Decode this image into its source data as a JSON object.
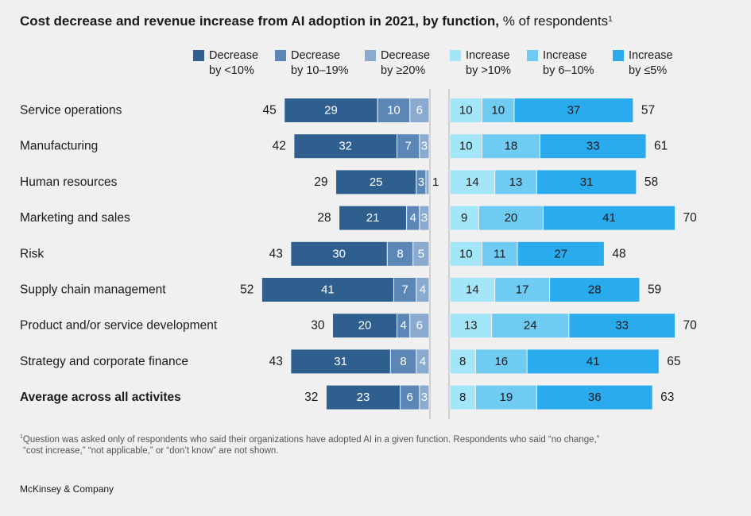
{
  "chart_data": {
    "type": "bar",
    "layout": "diverging-stacked-horizontal",
    "title": "Cost decrease and revenue increase from AI adoption in 2021, by function,",
    "title_unit": "% of respondents",
    "title_footnote_mark": "1",
    "legend": [
      {
        "line1": "Decrease",
        "line2": "by <10%",
        "color": "#2f5f8f"
      },
      {
        "line1": "Decrease",
        "line2": "by 10–19%",
        "color": "#5b86b5"
      },
      {
        "line1": "Decrease",
        "line2": "by ≥20%",
        "color": "#8aabcf"
      },
      {
        "line1": "Increase",
        "line2": "by >10%",
        "color": "#a3e6fa"
      },
      {
        "line1": "Increase",
        "line2": "by 6–10%",
        "color": "#6fcbf2"
      },
      {
        "line1": "Increase",
        "line2": "by ≤5%",
        "color": "#2aabee"
      }
    ],
    "categories": [
      "Service operations",
      "Manufacturing",
      "Human resources",
      "Marketing and sales",
      "Risk",
      "Supply chain management",
      "Product and/or service development",
      "Strategy and corporate finance",
      "Average across all activites"
    ],
    "bold_category_index": 8,
    "decrease": {
      "series": [
        {
          "name": "Decrease by <10%",
          "values": [
            29,
            32,
            25,
            21,
            30,
            41,
            20,
            31,
            23
          ]
        },
        {
          "name": "Decrease by 10–19%",
          "values": [
            10,
            7,
            3,
            4,
            8,
            7,
            4,
            8,
            6
          ]
        },
        {
          "name": "Decrease by ≥20%",
          "values": [
            6,
            3,
            1,
            3,
            5,
            4,
            6,
            4,
            3
          ]
        }
      ],
      "totals": [
        45,
        42,
        29,
        28,
        43,
        52,
        30,
        43,
        32
      ]
    },
    "increase": {
      "series": [
        {
          "name": "Increase by >10%",
          "values": [
            10,
            10,
            14,
            9,
            10,
            14,
            13,
            8,
            8
          ]
        },
        {
          "name": "Increase by 6–10%",
          "values": [
            10,
            18,
            13,
            20,
            11,
            17,
            24,
            16,
            19
          ]
        },
        {
          "name": "Increase by ≤5%",
          "values": [
            37,
            33,
            31,
            41,
            27,
            28,
            33,
            41,
            36
          ]
        }
      ],
      "totals": [
        57,
        61,
        58,
        70,
        48,
        59,
        70,
        65,
        63
      ]
    }
  },
  "footnote": {
    "mark": "1",
    "line1": "Question was asked only of respondents who said their organizations have adopted AI in a given function. Respondents who said “no change,”",
    "line2": "“cost increase,” “not applicable,” or “don’t know” are not shown."
  },
  "source": "McKinsey & Company"
}
